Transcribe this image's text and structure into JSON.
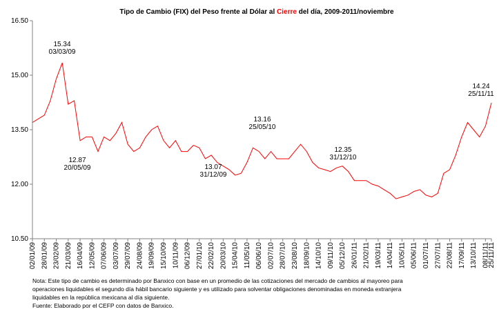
{
  "chart_data": {
    "type": "line",
    "title": [
      "Tipo de Cambio (FIX) del Peso frente al Dólar al",
      "Cierre",
      "del día, 2009-2011/noviembre"
    ],
    "title_colors": [
      "#000000",
      "#ff0000",
      "#000000"
    ],
    "categories": [
      "02/01/09",
      null,
      "28/01/09",
      null,
      "23/02/09",
      null,
      "21/03/09",
      null,
      "16/04/09",
      null,
      "12/05/09",
      null,
      "07/06/09",
      null,
      "03/07/09",
      null,
      "29/07/09",
      null,
      "24/08/09",
      null,
      "19/09/09",
      null,
      "15/10/09",
      null,
      "10/11/09",
      null,
      "06/12/09",
      null,
      "27/01/10",
      null,
      "22/02/10",
      null,
      "20/03/10",
      null,
      "15/04/10",
      null,
      "11/05/10",
      null,
      "06/06/10",
      null,
      "02/07/10",
      null,
      "28/07/10",
      null,
      "23/08/10",
      null,
      "18/09/10",
      null,
      "14/10/10",
      null,
      "09/11/10",
      null,
      "05/12/10",
      null,
      "26/01/11",
      null,
      "21/02/11",
      null,
      "19/03/11",
      null,
      "14/04/11",
      null,
      "10/05/11",
      null,
      "05/06/11",
      null,
      "01/07/11",
      null,
      "27/07/11",
      null,
      "22/08/11",
      null,
      "17/09/11",
      null,
      "13/10/11",
      null,
      "08/11/11",
      "25/11/11"
    ],
    "series": [
      {
        "color": "#ff0000",
        "values": [
          13.7,
          13.8,
          13.9,
          14.3,
          14.9,
          15.34,
          14.2,
          14.3,
          13.2,
          13.3,
          13.3,
          12.9,
          13.3,
          13.2,
          13.4,
          13.7,
          13.1,
          12.9,
          13.0,
          13.3,
          13.5,
          13.6,
          13.2,
          13.0,
          13.2,
          12.9,
          12.9,
          13.07,
          13.0,
          12.7,
          12.8,
          12.6,
          12.5,
          12.4,
          12.25,
          12.3,
          12.6,
          13.0,
          12.9,
          12.7,
          12.9,
          12.7,
          12.7,
          12.7,
          12.9,
          13.1,
          12.9,
          12.6,
          12.45,
          12.4,
          12.35,
          12.45,
          12.5,
          12.35,
          12.1,
          12.1,
          12.1,
          12.0,
          11.95,
          11.85,
          11.75,
          11.6,
          11.65,
          11.7,
          11.8,
          11.85,
          11.7,
          11.65,
          11.75,
          12.3,
          12.4,
          12.8,
          13.3,
          13.7,
          13.5,
          13.3,
          13.6,
          14.24
        ]
      }
    ],
    "ylim": [
      10.5,
      16.5
    ],
    "yticks": [
      {
        "value": 10.5,
        "label": "10.50"
      },
      {
        "value": 12,
        "label": "12.00"
      },
      {
        "value": 13.5,
        "label": "13.50"
      },
      {
        "value": 15,
        "label": "15.00"
      },
      {
        "value": 16.5,
        "label": "16.50"
      }
    ],
    "grid": false,
    "annotations": [
      [
        "15.34",
        "03/03/09"
      ],
      [
        "12.87",
        "20/05/09"
      ],
      [
        "13.07",
        "31/12/09"
      ],
      [
        "13.16",
        "25/05/10"
      ],
      [
        "12.35",
        "31/12/10"
      ],
      [
        "14.24",
        "25/11/11"
      ]
    ],
    "note": [
      "Nota: Este tipo de cambio es determinado por Banxico con base en un promedio de las cotizaciones del mercado de cambios al mayoreo para",
      "operaciones liquidables el segundo día hábil bancario siguiente y es utilizado  para solventar obligaciones denominadas en moneda extranjera",
      "liquidables en la república mexicana al día siguiente."
    ],
    "source": "Fuente: Elaborado por el CEFP con datos de Banxico."
  }
}
